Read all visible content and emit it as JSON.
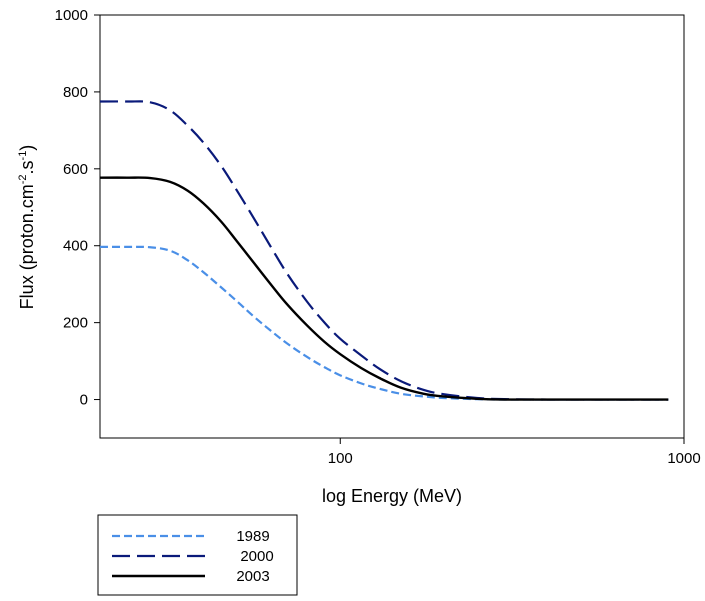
{
  "chart_data": {
    "type": "line",
    "xscale": "log",
    "xlim": [
      20,
      1000
    ],
    "ylim": [
      -100,
      1000
    ],
    "xlabel": "log Energy (MeV)",
    "ylabel_parts": {
      "pre": "Flux (proton.cm",
      "sup1": "-2",
      "mid": ".s",
      "sup2": "-1",
      "post": ")"
    },
    "x_ticks": [
      100,
      1000
    ],
    "x_tick_labels": [
      "100",
      "1000"
    ],
    "y_ticks": [
      0,
      200,
      400,
      600,
      800,
      1000
    ],
    "y_tick_labels": [
      "0",
      "200",
      "400",
      "600",
      "800",
      "1000"
    ],
    "grid": false,
    "legend_position": "bottom-left",
    "x": [
      20,
      24,
      28,
      32,
      36,
      40,
      45,
      50,
      56,
      63,
      70,
      80,
      90,
      100,
      115,
      130,
      150,
      175,
      200,
      250,
      300,
      400,
      500,
      600,
      700,
      800,
      900
    ],
    "series": [
      {
        "name": "1989",
        "color": "#4a8fe7",
        "dash": "8,4",
        "values": [
          397,
          397,
          396,
          387,
          362,
          331,
          292,
          256,
          216,
          178,
          146,
          111,
          84,
          63,
          42,
          28,
          15,
          8,
          4,
          1,
          0,
          0,
          0,
          0,
          0,
          0,
          0
        ]
      },
      {
        "name": "2000",
        "color": "#0a1a7a",
        "dash": "18,7",
        "values": [
          775,
          775,
          773,
          752,
          712,
          668,
          608,
          544,
          472,
          395,
          328,
          255,
          200,
          158,
          115,
          80,
          48,
          25,
          14,
          4,
          1,
          0,
          0,
          0,
          0,
          0,
          0
        ]
      },
      {
        "name": "2003",
        "color": "#000000",
        "dash": "",
        "values": [
          577,
          577,
          576,
          566,
          543,
          510,
          463,
          412,
          356,
          298,
          248,
          193,
          150,
          118,
          82,
          56,
          31,
          15,
          8,
          2,
          0,
          0,
          0,
          0,
          0,
          0,
          0
        ]
      }
    ]
  }
}
